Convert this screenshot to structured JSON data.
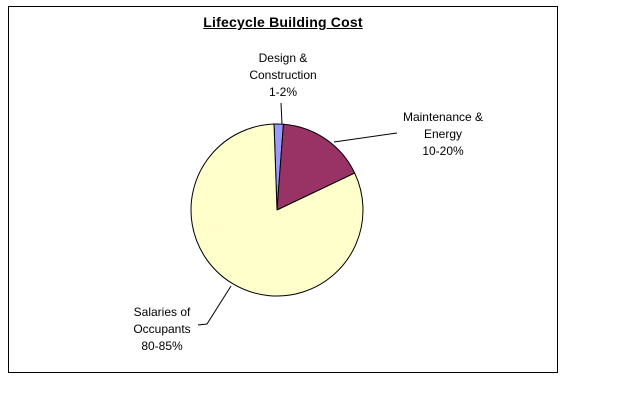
{
  "chart_data": {
    "type": "pie",
    "title": "Lifecycle Building Cost",
    "start_angle_deg": -2,
    "direction": "clockwise",
    "legend": "none",
    "background": "#FFFFFF",
    "outline_color": "#000000",
    "slices": [
      {
        "id": "design-construction",
        "label": "Design & Construction",
        "value_label": "1-2%",
        "value": 1.75,
        "color": "#9999FF",
        "callout_lines": [
          "Design &",
          "Construction",
          "1-2%"
        ]
      },
      {
        "id": "maintenance-energy",
        "label": "Maintenance & Energy",
        "value_label": "10-20%",
        "value": 16.75,
        "color": "#993366",
        "callout_lines": [
          "Maintenance &",
          "Energy",
          "10-20%"
        ]
      },
      {
        "id": "salaries-occupants",
        "label": "Salaries of Occupants",
        "value_label": "80-85%",
        "value": 81.5,
        "color": "#FFFFCC",
        "callout_lines": [
          "Salaries of",
          "Occupants",
          "80-85%"
        ]
      }
    ]
  }
}
